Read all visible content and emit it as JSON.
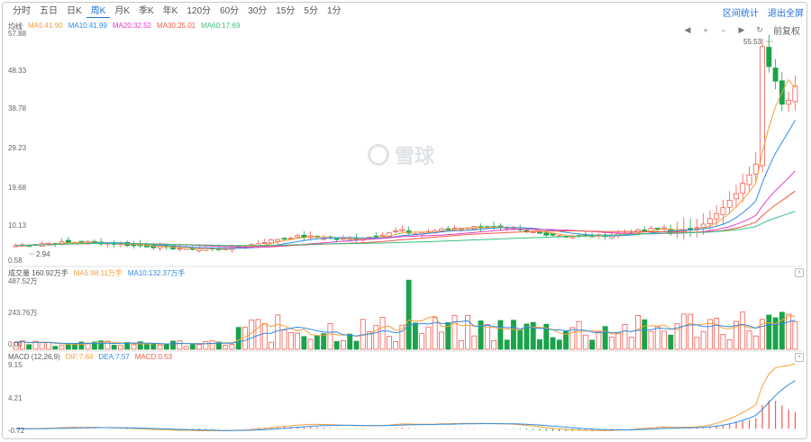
{
  "tabs": [
    {
      "label": "分时",
      "active": false
    },
    {
      "label": "五日",
      "active": false
    },
    {
      "label": "日K",
      "active": false
    },
    {
      "label": "周K",
      "active": true
    },
    {
      "label": "月K",
      "active": false
    },
    {
      "label": "季K",
      "active": false
    },
    {
      "label": "年K",
      "active": false
    },
    {
      "label": "120分",
      "active": false
    },
    {
      "label": "60分",
      "active": false
    },
    {
      "label": "30分",
      "active": false
    },
    {
      "label": "15分",
      "active": false
    },
    {
      "label": "5分",
      "active": false
    },
    {
      "label": "1分",
      "active": false
    }
  ],
  "links": {
    "range_stats": "区间统计",
    "exit_fullscreen": "退出全屏"
  },
  "toolbar": {
    "adjust_label": "前复权"
  },
  "watermark": "雪球",
  "colors": {
    "up": "#f35b4f",
    "down": "#1aa34a",
    "ma5": "#f7a03b",
    "ma10": "#2f8ce6",
    "ma20": "#e040c5",
    "ma30": "#f25a44",
    "ma60": "#3bbf80",
    "accent": "#1f6fd6"
  },
  "price_panel": {
    "legend": [
      {
        "text": "均线",
        "color": "#555"
      },
      {
        "text": "MA5:41.90",
        "color": "#f7a03b"
      },
      {
        "text": "MA10:41.99",
        "color": "#2f8ce6"
      },
      {
        "text": "MA20:32.52",
        "color": "#e040c5"
      },
      {
        "text": "MA30:25.01",
        "color": "#f25a44"
      },
      {
        "text": "MA60:17.69",
        "color": "#3bbf80"
      }
    ],
    "y_ticks": [
      "57.88",
      "48.33",
      "38.78",
      "29.23",
      "19.68",
      "10.13",
      "0.58"
    ],
    "high_label": "55.53",
    "low_label": "2.94"
  },
  "volume_panel": {
    "legend": [
      {
        "text": "成交量 160.92万手",
        "color": "#555"
      },
      {
        "text": "MA5:98.11万手",
        "color": "#f7a03b"
      },
      {
        "text": "MA10:132.37万手",
        "color": "#2f8ce6"
      }
    ],
    "y_ticks": [
      "487.52万",
      "243.76万",
      "0.00"
    ]
  },
  "macd_panel": {
    "legend": [
      {
        "text": "MACD (12,26,9)",
        "color": "#555"
      },
      {
        "text": "DIF:7.84",
        "color": "#f7a03b"
      },
      {
        "text": "DEA:7.57",
        "color": "#2f8ce6"
      },
      {
        "text": "MACD:0.53",
        "color": "#f25a44"
      }
    ],
    "y_ticks": [
      "9.15",
      "4.21",
      "-0.72"
    ]
  }
}
